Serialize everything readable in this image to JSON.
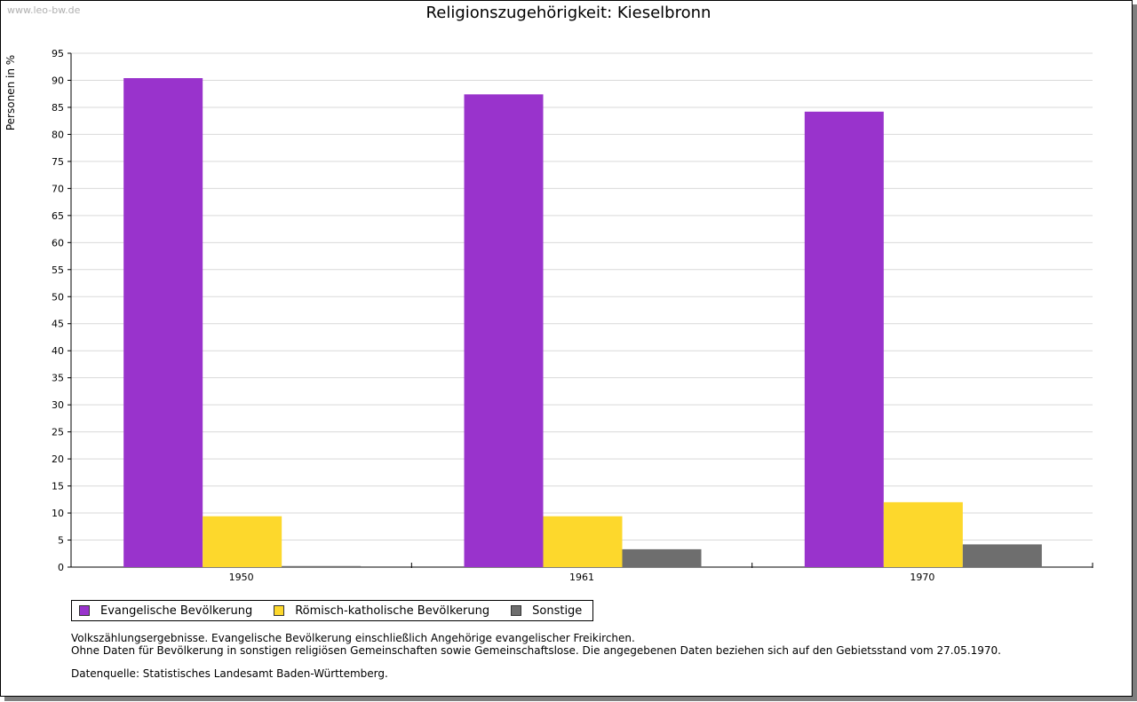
{
  "watermark": "www.leo-bw.de",
  "chart_data": {
    "type": "bar",
    "title": "Religionszugehörigkeit: Kieselbronn",
    "xlabel": "",
    "ylabel": "Personen in %",
    "ylim": [
      0,
      95
    ],
    "yticks": [
      0,
      5,
      10,
      15,
      20,
      25,
      30,
      35,
      40,
      45,
      50,
      55,
      60,
      65,
      70,
      75,
      80,
      85,
      90,
      95
    ],
    "categories": [
      "1950",
      "1961",
      "1970"
    ],
    "series": [
      {
        "name": "Evangelische Bevölkerung",
        "color": "#9933cc",
        "values": [
          90.4,
          87.4,
          84.2
        ]
      },
      {
        "name": "Römisch-katholische Bevölkerung",
        "color": "#fdd82c",
        "values": [
          9.4,
          9.4,
          12.0
        ]
      },
      {
        "name": "Sonstige",
        "color": "#6e6e6e",
        "values": [
          0.2,
          3.3,
          4.2
        ]
      }
    ],
    "grid": true,
    "legend": "bottom-left"
  },
  "notes": {
    "line1": "Volkszählungsergebnisse. Evangelische Bevölkerung einschließlich Angehörige evangelischer Freikirchen.",
    "line2": "Ohne Daten für Bevölkerung in sonstigen religiösen Gemeinschaften sowie Gemeinschaftslose. Die angegebenen Daten beziehen sich auf den Gebietsstand vom 27.05.1970.",
    "source": "Datenquelle: Statistisches Landesamt Baden-Württemberg."
  }
}
